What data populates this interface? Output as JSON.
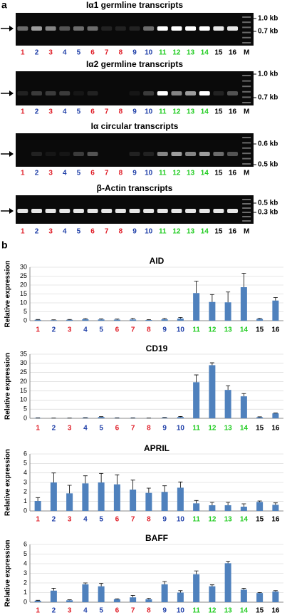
{
  "panel_a": {
    "label": "a",
    "gels": [
      {
        "title": "Iα1 germline transcripts",
        "markers": [
          "1.0 kb",
          "0.7 kb"
        ],
        "band_intensity": [
          0.4,
          0.6,
          0.5,
          0.3,
          0.4,
          0.4,
          0.1,
          0.1,
          0.1,
          0.4,
          1,
          1,
          1,
          1,
          0.9,
          0.9
        ]
      },
      {
        "title": "Iα2 germline transcripts",
        "markers": [
          "1.0 kb",
          "0.7 kb"
        ],
        "band_intensity": [
          0.1,
          0.2,
          0.2,
          0.2,
          0.05,
          0.1,
          0,
          0,
          0.05,
          0.2,
          1,
          0.5,
          0.6,
          1,
          0.1,
          0.3
        ]
      },
      {
        "title": "Iα circular transcripts",
        "markers": [
          "0.6 kb",
          "0.5 kb"
        ],
        "band_intensity": [
          0,
          0.1,
          0.05,
          0.05,
          0.2,
          0.3,
          0,
          0,
          0.1,
          0.1,
          0.5,
          0.6,
          0.5,
          0.6,
          0.4,
          0.3
        ]
      },
      {
        "title": "β-Actin transcripts",
        "markers": [
          "0.5 kb",
          "0.3 kb"
        ],
        "band_intensity": [
          0.9,
          0.9,
          0.9,
          0.9,
          0.9,
          0.9,
          0.9,
          0.9,
          0.9,
          0.9,
          0.9,
          0.9,
          0.9,
          0.9,
          0.9,
          0.9
        ]
      }
    ]
  },
  "lanes": {
    "labels": [
      "1",
      "2",
      "3",
      "4",
      "5",
      "6",
      "7",
      "8",
      "9",
      "10",
      "11",
      "12",
      "13",
      "14",
      "15",
      "16"
    ],
    "colors": [
      "#e0202a",
      "#1f3fa8",
      "#e0202a",
      "#1f3fa8",
      "#1f3fa8",
      "#e0202a",
      "#e0202a",
      "#e0202a",
      "#1f3fa8",
      "#1f3fa8",
      "#22cc22",
      "#22cc22",
      "#22cc22",
      "#22cc22",
      "#000000",
      "#000000"
    ],
    "marker": "M"
  },
  "panel_b": {
    "label": "b",
    "ylabel": "Relative expression"
  },
  "chart_data": [
    {
      "type": "bar",
      "title": "AID",
      "color": "#4f81bd",
      "values": [
        0.5,
        0.3,
        0.5,
        0.8,
        0.7,
        0.6,
        0.7,
        0.4,
        0.8,
        1.2,
        15.5,
        10.5,
        10.3,
        18.8,
        1,
        11.3
      ],
      "errors": [
        0.2,
        0.2,
        0.2,
        0.4,
        0.3,
        0.3,
        0.6,
        0.2,
        0.5,
        0.6,
        6.7,
        4.2,
        5.8,
        7.8,
        0.3,
        1.7
      ],
      "ylim": [
        0,
        30
      ],
      "yticks": [
        0,
        5,
        10,
        15,
        20,
        25,
        30
      ]
    },
    {
      "type": "bar",
      "title": "CD19",
      "color": "#4f81bd",
      "values": [
        0.2,
        0.1,
        0.1,
        0.3,
        0.7,
        0.2,
        0.2,
        0.1,
        0.3,
        0.7,
        19.7,
        29,
        15.5,
        12,
        0.6,
        2.7
      ],
      "errors": [
        0.1,
        0.1,
        0.1,
        0.1,
        0.2,
        0.1,
        0.1,
        0.1,
        0.2,
        0.3,
        4,
        1.3,
        2.3,
        1.5,
        0.2,
        0.2
      ],
      "ylim": [
        0,
        35
      ],
      "yticks": [
        0,
        5,
        10,
        15,
        20,
        25,
        30,
        35
      ]
    },
    {
      "type": "bar",
      "title": "APRIL",
      "color": "#4f81bd",
      "values": [
        1.05,
        3.0,
        1.85,
        2.9,
        3.0,
        2.8,
        2.25,
        1.9,
        2.0,
        2.45,
        0.8,
        0.6,
        0.6,
        0.45,
        0.95,
        0.65
      ],
      "errors": [
        0.35,
        1.0,
        0.85,
        0.8,
        0.95,
        1.0,
        1.0,
        0.5,
        0.65,
        0.6,
        0.3,
        0.3,
        0.3,
        0.3,
        0.1,
        0.2
      ],
      "ylim": [
        0,
        6
      ],
      "yticks": [
        0,
        1,
        2,
        3,
        4,
        5,
        6
      ]
    },
    {
      "type": "bar",
      "title": "BAFF",
      "color": "#4f81bd",
      "values": [
        0.15,
        1.2,
        0.2,
        1.85,
        1.65,
        0.3,
        0.5,
        0.3,
        1.85,
        1.0,
        2.9,
        1.65,
        4.05,
        1.3,
        0.95,
        1.1
      ],
      "errors": [
        0.05,
        0.25,
        0.05,
        0.15,
        0.3,
        0.05,
        0.2,
        0.1,
        0.3,
        0.2,
        0.35,
        0.15,
        0.2,
        0.15,
        0.05,
        0.1
      ],
      "ylim": [
        0,
        6
      ],
      "yticks": [
        0,
        1,
        2,
        3,
        4,
        5,
        6
      ]
    }
  ]
}
